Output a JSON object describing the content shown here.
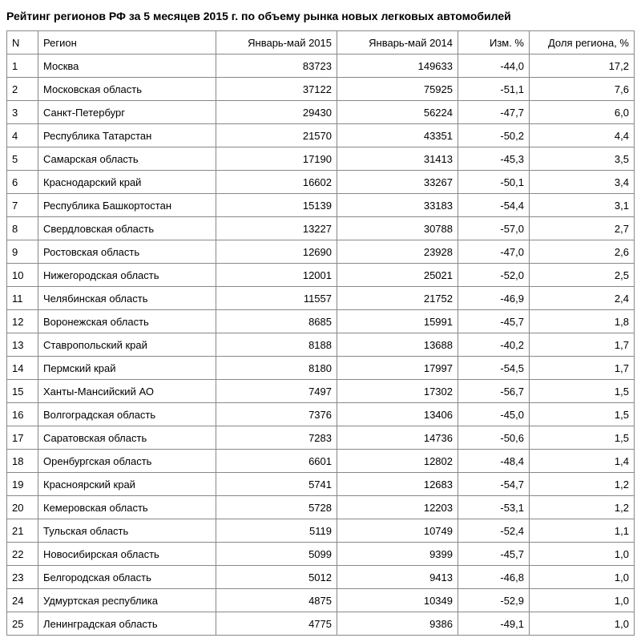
{
  "title": "Рейтинг регионов РФ за 5 месяцев 2015 г. по объему рынка новых легковых автомобилей",
  "columns": {
    "n": "N",
    "region": "Регион",
    "y2015": "Январь-май 2015",
    "y2014": "Январь-май 2014",
    "change": "Изм. %",
    "share": "Доля региона, %"
  },
  "rows": [
    {
      "n": "1",
      "region": "Москва",
      "y2015": "83723",
      "y2014": "149633",
      "change": "-44,0",
      "share": "17,2"
    },
    {
      "n": "2",
      "region": "Московская область",
      "y2015": "37122",
      "y2014": "75925",
      "change": "-51,1",
      "share": "7,6"
    },
    {
      "n": "3",
      "region": "Санкт-Петербург",
      "y2015": "29430",
      "y2014": "56224",
      "change": "-47,7",
      "share": "6,0"
    },
    {
      "n": "4",
      "region": "Республика Татарстан",
      "y2015": "21570",
      "y2014": "43351",
      "change": "-50,2",
      "share": "4,4"
    },
    {
      "n": "5",
      "region": "Самарская область",
      "y2015": "17190",
      "y2014": "31413",
      "change": "-45,3",
      "share": "3,5"
    },
    {
      "n": "6",
      "region": "Краснодарский край",
      "y2015": "16602",
      "y2014": "33267",
      "change": "-50,1",
      "share": "3,4"
    },
    {
      "n": "7",
      "region": "Республика Башкортостан",
      "y2015": "15139",
      "y2014": "33183",
      "change": "-54,4",
      "share": "3,1"
    },
    {
      "n": "8",
      "region": "Свердловская область",
      "y2015": "13227",
      "y2014": "30788",
      "change": "-57,0",
      "share": "2,7"
    },
    {
      "n": "9",
      "region": "Ростовская область",
      "y2015": "12690",
      "y2014": "23928",
      "change": "-47,0",
      "share": "2,6"
    },
    {
      "n": "10",
      "region": "Нижегородская область",
      "y2015": "12001",
      "y2014": "25021",
      "change": "-52,0",
      "share": "2,5"
    },
    {
      "n": "11",
      "region": "Челябинская область",
      "y2015": "11557",
      "y2014": "21752",
      "change": "-46,9",
      "share": "2,4"
    },
    {
      "n": "12",
      "region": "Воронежская область",
      "y2015": "8685",
      "y2014": "15991",
      "change": "-45,7",
      "share": "1,8"
    },
    {
      "n": "13",
      "region": "Ставропольский край",
      "y2015": "8188",
      "y2014": "13688",
      "change": "-40,2",
      "share": "1,7"
    },
    {
      "n": "14",
      "region": "Пермский край",
      "y2015": "8180",
      "y2014": "17997",
      "change": "-54,5",
      "share": "1,7"
    },
    {
      "n": "15",
      "region": "Ханты-Мансийский АО",
      "y2015": "7497",
      "y2014": "17302",
      "change": "-56,7",
      "share": "1,5"
    },
    {
      "n": "16",
      "region": "Волгоградская область",
      "y2015": "7376",
      "y2014": "13406",
      "change": "-45,0",
      "share": "1,5"
    },
    {
      "n": "17",
      "region": "Саратовская область",
      "y2015": "7283",
      "y2014": "14736",
      "change": "-50,6",
      "share": "1,5"
    },
    {
      "n": "18",
      "region": "Оренбургская область",
      "y2015": "6601",
      "y2014": "12802",
      "change": "-48,4",
      "share": "1,4"
    },
    {
      "n": "19",
      "region": "Красноярский край",
      "y2015": "5741",
      "y2014": "12683",
      "change": "-54,7",
      "share": "1,2"
    },
    {
      "n": "20",
      "region": "Кемеровская область",
      "y2015": "5728",
      "y2014": "12203",
      "change": "-53,1",
      "share": "1,2"
    },
    {
      "n": "21",
      "region": "Тульская область",
      "y2015": "5119",
      "y2014": "10749",
      "change": "-52,4",
      "share": "1,1"
    },
    {
      "n": "22",
      "region": "Новосибирская область",
      "y2015": "5099",
      "y2014": "9399",
      "change": "-45,7",
      "share": "1,0"
    },
    {
      "n": "23",
      "region": "Белгородская область",
      "y2015": "5012",
      "y2014": "9413",
      "change": "-46,8",
      "share": "1,0"
    },
    {
      "n": "24",
      "region": "Удмуртская республика",
      "y2015": "4875",
      "y2014": "10349",
      "change": "-52,9",
      "share": "1,0"
    },
    {
      "n": "25",
      "region": "Ленинградская область",
      "y2015": "4775",
      "y2014": "9386",
      "change": "-49,1",
      "share": "1,0"
    }
  ],
  "style": {
    "border_color": "#888888",
    "text_color": "#000000",
    "background": "#ffffff",
    "font_size_body": 13,
    "font_size_title": 14
  }
}
